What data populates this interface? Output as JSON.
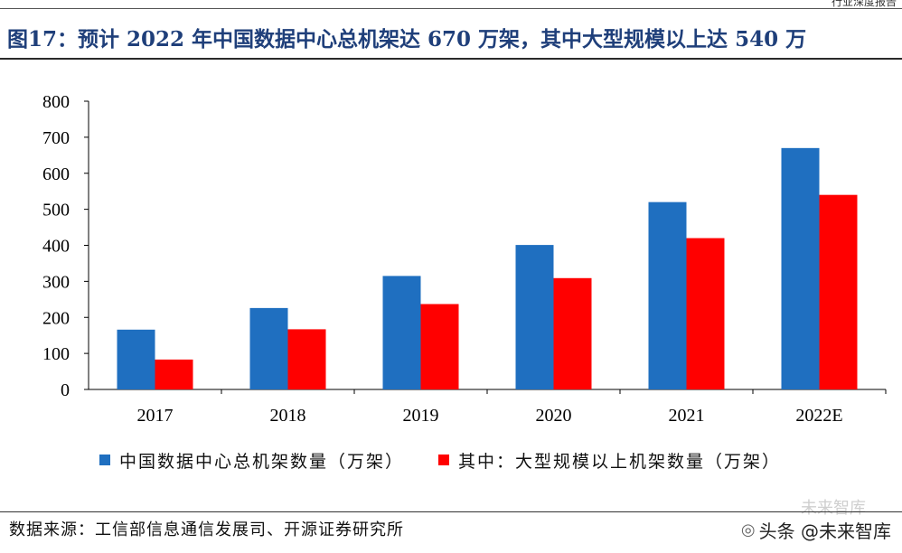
{
  "header": {
    "top_strip_text": "行业深度报告"
  },
  "title": "图17：预计 2022 年中国数据中心总机架达 670 万架，其中大型规模以上达 540 万",
  "colors": {
    "series_total": "#1f6fc0",
    "series_large": "#ff0000",
    "title": "#1f3f7a"
  },
  "chart_data": {
    "type": "bar",
    "categories": [
      "2017",
      "2018",
      "2019",
      "2020",
      "2021",
      "2022E"
    ],
    "series": [
      {
        "name": "中国数据中心总机架数量（万架）",
        "values": [
          166,
          226,
          315,
          401,
          520,
          670
        ]
      },
      {
        "name": "其中：大型规模以上机架数量（万架）",
        "values": [
          83,
          167,
          237,
          309,
          420,
          540
        ]
      }
    ],
    "ylim": [
      0,
      800
    ],
    "yticks": [
      0,
      100,
      200,
      300,
      400,
      500,
      600,
      700,
      800
    ],
    "legend_position": "bottom",
    "grid": false
  },
  "source_text": "数据来源：工信部信息通信发展司、开源证券研究所",
  "watermark": {
    "text": "头条 @未来智库",
    "faint_text": "未来智库",
    "icon": "wechat-icon"
  }
}
